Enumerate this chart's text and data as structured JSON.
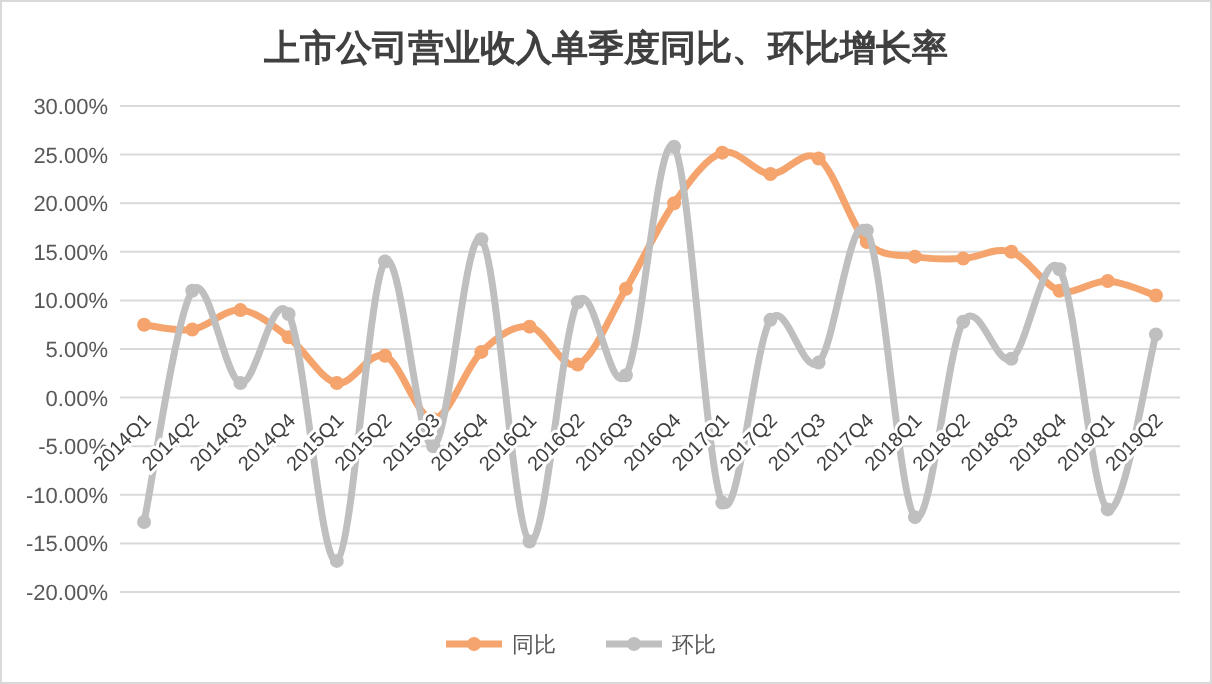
{
  "chart_data": {
    "type": "line",
    "title": "上市公司营业收入单季度同比、环比增长率",
    "categories": [
      "2014Q1",
      "2014Q2",
      "2014Q3",
      "2014Q4",
      "2015Q1",
      "2015Q2",
      "2015Q3",
      "2015Q4",
      "2016Q1",
      "2016Q2",
      "2016Q3",
      "2016Q4",
      "2017Q1",
      "2017Q2",
      "2017Q3",
      "2017Q4",
      "2018Q1",
      "2018Q2",
      "2018Q3",
      "2018Q4",
      "2019Q1",
      "2019Q2"
    ],
    "series": [
      {
        "name": "同比",
        "color": "#f4a46c",
        "values": [
          7.5,
          7.0,
          9.0,
          6.2,
          1.5,
          4.3,
          -2.2,
          4.7,
          7.3,
          3.4,
          11.2,
          20.0,
          25.2,
          23.0,
          24.6,
          16.0,
          14.5,
          14.3,
          15.0,
          11.0,
          12.0,
          10.5
        ]
      },
      {
        "name": "环比",
        "color": "#bfbfbf",
        "values": [
          -12.8,
          11.0,
          1.5,
          8.6,
          -16.8,
          14.0,
          -5.0,
          16.3,
          -14.8,
          9.8,
          2.3,
          25.8,
          -10.8,
          8.0,
          3.6,
          17.2,
          -12.3,
          7.8,
          4.0,
          13.2,
          -11.5,
          6.5
        ]
      }
    ],
    "ylim": [
      -20,
      30
    ],
    "yticks": [
      {
        "value": 30,
        "label": "30.00%"
      },
      {
        "value": 25,
        "label": "25.00%"
      },
      {
        "value": 20,
        "label": "20.00%"
      },
      {
        "value": 15,
        "label": "15.00%"
      },
      {
        "value": 10,
        "label": "10.00%"
      },
      {
        "value": 5,
        "label": "5.00%"
      },
      {
        "value": 0,
        "label": "0.00%"
      },
      {
        "value": -5,
        "label": "-5.00%"
      },
      {
        "value": -10,
        "label": "-10.00%"
      },
      {
        "value": -15,
        "label": "-15.00%"
      },
      {
        "value": -20,
        "label": "-20.00%"
      }
    ],
    "grid": "y",
    "legend": "bottom",
    "marker": "circle",
    "line_style": "solid"
  }
}
